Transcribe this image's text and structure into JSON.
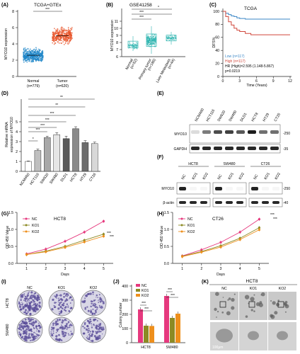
{
  "colors": {
    "blue": "#2e7fc2",
    "red": "#d62828",
    "tumor_orange": "#e8542a",
    "normal_blue": "#1e86c8",
    "teal": "#2fb5b0",
    "surv_blue": "#3a86c6",
    "surv_red": "#d0463a",
    "nc_pink": "#e6397e",
    "ko1_olive": "#8c8a24",
    "ko2_orange": "#ee8f1c",
    "cell_purple": "#5b4f9a"
  },
  "panels": {
    "A": {
      "label": "(A)",
      "title": "TCGA+GTEx",
      "ylabel": "MYO10 expression",
      "sig": "***",
      "groups": [
        {
          "name": "Normal",
          "n": "(n=779)"
        },
        {
          "name": "Tumor",
          "n": "(n=620)"
        }
      ]
    },
    "B": {
      "label": "(B)",
      "title": "GSE41258",
      "ylabel": "MYO10 expression",
      "sig_top": "*",
      "sig_mid": "***",
      "sig_low": "***",
      "groups": [
        {
          "name": "Normal",
          "n": "(n=52)"
        },
        {
          "name": "Primary tumor",
          "n": "(n=186)"
        },
        {
          "name": "Liver Metastasis",
          "n": "(n=44)"
        }
      ]
    },
    "C": {
      "label": "(C)",
      "title": "TCGA",
      "ylabel": "DFS%",
      "xlabel": "Time (Years)",
      "legend": [
        "Low (n=117)",
        "High (n=117)"
      ],
      "hr": "HR (High)=2.595 (1.148-5.867)",
      "p": "p=0.0219"
    },
    "D": {
      "label": "(D)",
      "ylabel": "Relative mRNA\nexpression of MYO10",
      "sigs": [
        "*",
        "***",
        "***",
        "***",
        "***",
        "**",
        "**"
      ]
    },
    "E": {
      "label": "(E)",
      "lanes": [
        "NCM460",
        "HCT116",
        "SW620",
        "SW480",
        "DLD1",
        "HCT8",
        "HT29",
        "CT26"
      ],
      "rows": [
        "MYO10",
        "GAPDH"
      ],
      "markers": [
        "250",
        "35"
      ]
    },
    "F": {
      "label": "(F)",
      "groups": [
        "HCT8",
        "SW480",
        "CT26"
      ],
      "lanes": [
        "NC",
        "KO1",
        "KO2"
      ],
      "rows": [
        "MYO10",
        "β-actin"
      ],
      "markers": [
        "250",
        "40"
      ]
    },
    "G": {
      "label": "(G)",
      "title": "HCT8",
      "ylabel": "OD 450 Value",
      "xlabel": "Days",
      "sig": "***"
    },
    "H": {
      "label": "(H)",
      "title": "CT26",
      "ylabel": "OD 450 Value",
      "xlabel": "Days",
      "sig": "***"
    },
    "I": {
      "label": "(I)",
      "cols": [
        "NC",
        "KO1",
        "KO2"
      ],
      "rows": [
        "HCT8",
        "SW480"
      ]
    },
    "J": {
      "label": "(J)",
      "ylabel": "Colony number",
      "sig": "***"
    },
    "K": {
      "label": "(K)",
      "title": "HCT8",
      "cols": [
        "NC",
        "KO1",
        "KO2"
      ],
      "scale": "100μm"
    }
  },
  "chart_data": [
    {
      "panel": "A",
      "type": "scatter",
      "title": "TCGA+GTEx",
      "ylabel": "MYO10 expression",
      "categories": [
        "Normal (n=779)",
        "Tumor (n=620)"
      ],
      "medians": [
        2.6,
        5.0
      ],
      "ranges": [
        [
          0.4,
          4.4
        ],
        [
          2.8,
          7.4
        ]
      ],
      "ylim": [
        0,
        8
      ],
      "yticks": [
        0,
        2,
        4,
        6,
        8
      ]
    },
    {
      "panel": "B",
      "type": "scatter",
      "title": "GSE41258",
      "ylabel": "MYO10 expression",
      "categories": [
        "Normal (n=52)",
        "Primary tumor (n=186)",
        "Liver Metastasis (n=44)"
      ],
      "medians": [
        7.6,
        8.3,
        8.65
      ],
      "ranges": [
        [
          6.8,
          8.9
        ],
        [
          6.4,
          10.3
        ],
        [
          7.7,
          9.5
        ]
      ],
      "ylim": [
        6,
        11
      ],
      "yticks": [
        6,
        7,
        8,
        9,
        10,
        11
      ]
    },
    {
      "panel": "C",
      "type": "line",
      "title": "TCGA",
      "xlabel": "Time (Years)",
      "ylabel": "DFS%",
      "xlim": [
        0,
        12
      ],
      "ylim": [
        0,
        100
      ],
      "xticks": [
        0,
        3,
        6,
        9,
        12
      ],
      "yticks": [
        0,
        20,
        40,
        60,
        80,
        100
      ],
      "series": [
        {
          "name": "Low (n=117)",
          "x": [
            0,
            0.5,
            1,
            1.5,
            2,
            2.5,
            3,
            4,
            6,
            12
          ],
          "y": [
            100,
            97,
            95,
            93,
            92,
            90,
            89,
            88,
            88,
            88
          ]
        },
        {
          "name": "High (n=117)",
          "x": [
            0,
            0.5,
            1,
            1.5,
            2,
            2.5,
            3,
            4,
            5,
            12
          ],
          "y": [
            100,
            92,
            84,
            79,
            74,
            71,
            69,
            66,
            64,
            64
          ]
        }
      ]
    },
    {
      "panel": "D",
      "type": "bar",
      "ylabel": "Relative mRNA expression of MYO10",
      "categories": [
        "NCM460",
        "HCT116",
        "SW620",
        "SW480",
        "DLD1",
        "HCT8",
        "HT29",
        "CT26"
      ],
      "values": [
        1.0,
        2.1,
        3.4,
        3.7,
        3.3,
        4.3,
        2.9,
        2.8
      ],
      "errors": [
        0.05,
        0.15,
        0.15,
        0.2,
        0.25,
        0.2,
        0.2,
        0.15
      ],
      "ylim": [
        0,
        5
      ],
      "yticks": [
        0,
        1,
        2,
        3,
        4,
        5
      ]
    },
    {
      "panel": "G",
      "type": "line",
      "title": "HCT8",
      "xlabel": "Days",
      "ylabel": "OD 450 Value",
      "x": [
        1,
        2,
        3,
        4,
        5
      ],
      "xlim": [
        0.5,
        5.5
      ],
      "ylim": [
        0,
        1.5
      ],
      "yticks": [
        0,
        0.5,
        1.0,
        1.5
      ],
      "series": [
        {
          "name": "NC",
          "values": [
            0.28,
            0.42,
            0.65,
            0.92,
            1.24
          ]
        },
        {
          "name": "KO1",
          "values": [
            0.26,
            0.36,
            0.5,
            0.68,
            0.86
          ]
        },
        {
          "name": "KO2",
          "values": [
            0.26,
            0.34,
            0.47,
            0.63,
            0.8
          ]
        }
      ]
    },
    {
      "panel": "H",
      "type": "line",
      "title": "CT26",
      "xlabel": "Days",
      "ylabel": "OD 450 Value",
      "x": [
        1,
        2,
        3,
        4,
        5
      ],
      "xlim": [
        0.5,
        5.5
      ],
      "ylim": [
        0,
        1.5
      ],
      "yticks": [
        0,
        0.5,
        1.0,
        1.5
      ],
      "series": [
        {
          "name": "NC",
          "values": [
            0.22,
            0.4,
            0.62,
            0.92,
            1.3
          ]
        },
        {
          "name": "KO1",
          "values": [
            0.21,
            0.35,
            0.52,
            0.74,
            1.05
          ]
        },
        {
          "name": "KO2",
          "values": [
            0.2,
            0.33,
            0.48,
            0.7,
            0.99
          ]
        }
      ]
    },
    {
      "panel": "J",
      "type": "bar",
      "ylabel": "Colony number",
      "categories": [
        "HCT8",
        "SW480"
      ],
      "series": [
        {
          "name": "NC",
          "values": [
            235,
            330
          ]
        },
        {
          "name": "KO1",
          "values": [
            120,
            175
          ]
        },
        {
          "name": "KO2",
          "values": [
            118,
            205
          ]
        }
      ],
      "ylim": [
        0,
        400
      ],
      "yticks": [
        0,
        100,
        200,
        300,
        400
      ]
    }
  ]
}
